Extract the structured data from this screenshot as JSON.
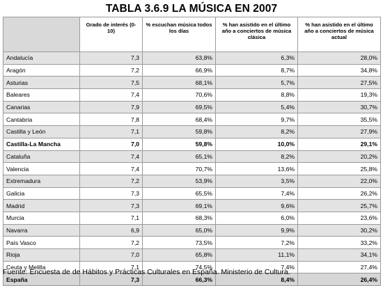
{
  "title": "TABLA 3.6.9 LA MÚSICA EN 2007",
  "headers": [
    "",
    "Grado de interés (0-10)",
    "% escuchan música todos los días",
    "% han asistido en el último año a conciertos de música clásica",
    "% han asistido en el último año a conciertos de música actual"
  ],
  "rows": [
    {
      "name": "Andalucía",
      "values": [
        "7,3",
        "63,8%",
        "6,3%",
        "28,0%"
      ],
      "shaded": true,
      "bold": false
    },
    {
      "name": "Aragón",
      "values": [
        "7,2",
        "66,9%",
        "8,7%",
        "34,8%"
      ],
      "shaded": false,
      "bold": false
    },
    {
      "name": "Asturias",
      "values": [
        "7,5",
        "68,1%",
        "5,7%",
        "27,5%"
      ],
      "shaded": true,
      "bold": false
    },
    {
      "name": "Baleares",
      "values": [
        "7,4",
        "70,6%",
        "8,8%",
        "19,3%"
      ],
      "shaded": false,
      "bold": false
    },
    {
      "name": "Canarias",
      "values": [
        "7,9",
        "69,5%",
        "5,4%",
        "30,7%"
      ],
      "shaded": true,
      "bold": false
    },
    {
      "name": "Cantabria",
      "values": [
        "7,8",
        "68,4%",
        "9,7%",
        "35,5%"
      ],
      "shaded": false,
      "bold": false
    },
    {
      "name": "Castilla y León",
      "values": [
        "7,1",
        "59,8%",
        "8,2%",
        "27,9%"
      ],
      "shaded": true,
      "bold": false
    },
    {
      "name": "Castilla-La Mancha",
      "values": [
        "7,0",
        "59,8%",
        "10,0%",
        "29,1%"
      ],
      "shaded": false,
      "bold": true
    },
    {
      "name": "Cataluña",
      "values": [
        "7,4",
        "65,1%",
        "8,2%",
        "20,2%"
      ],
      "shaded": true,
      "bold": false
    },
    {
      "name": "Valencia",
      "values": [
        "7,4",
        "70,7%",
        "13,6%",
        "25,8%"
      ],
      "shaded": false,
      "bold": false
    },
    {
      "name": "Extremadura",
      "values": [
        "7,2",
        "53,9%",
        "3,5%",
        "22,0%"
      ],
      "shaded": true,
      "bold": false
    },
    {
      "name": "Galicia",
      "values": [
        "7,3",
        "65,5%",
        "7,4%",
        "26,2%"
      ],
      "shaded": false,
      "bold": false
    },
    {
      "name": "Madrid",
      "values": [
        "7,3",
        "69,1%",
        "9,6%",
        "25,7%"
      ],
      "shaded": true,
      "bold": false
    },
    {
      "name": "Murcia",
      "values": [
        "7,1",
        "68,3%",
        "6,0%",
        "23,6%"
      ],
      "shaded": false,
      "bold": false
    },
    {
      "name": "Navarra",
      "values": [
        "6,9",
        "65,0%",
        "9,9%",
        "30,2%"
      ],
      "shaded": true,
      "bold": false
    },
    {
      "name": "País Vasco",
      "values": [
        "7,2",
        "73,5%",
        "7,2%",
        "33,2%"
      ],
      "shaded": false,
      "bold": false
    },
    {
      "name": "Rioja",
      "values": [
        "7,0",
        "65,8%",
        "11,1%",
        "34,1%"
      ],
      "shaded": true,
      "bold": false
    },
    {
      "name": "Ceuta y Melilla",
      "values": [
        "7,1",
        "74,5%",
        "7,4%",
        "27,4%"
      ],
      "shaded": false,
      "bold": false
    }
  ],
  "total": {
    "name": "España",
    "values": [
      "7,3",
      "66,3%",
      "8,4%",
      "26,4%"
    ]
  },
  "source": "Fuente: Encuesta de de Hábitos y Prácticas Culturales en España. Ministerio de Cultura."
}
